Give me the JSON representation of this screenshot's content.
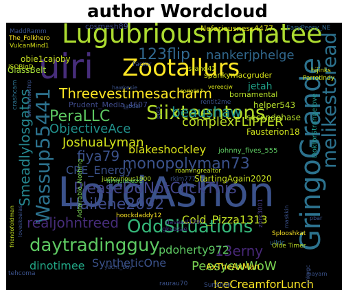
{
  "title": "author Wordcloud",
  "chart_data": {
    "type": "wordcloud",
    "title": "author Wordcloud",
    "colormap": "viridis",
    "background": "#000000",
    "words": [
      {
        "text": "LordAshon",
        "weight": 100,
        "color": "#3b528b"
      },
      {
        "text": "Lugubriousmanatee",
        "weight": 86,
        "color": "#addc30"
      },
      {
        "text": "uiri",
        "weight": 82,
        "color": "#472d7b"
      },
      {
        "text": "GringoGrande",
        "weight": 80,
        "color": "#2c728e"
      },
      {
        "text": "Wassup55441",
        "weight": 64,
        "color": "#2c728e"
      },
      {
        "text": "melikestoread",
        "weight": 62,
        "color": "#2c728e"
      },
      {
        "text": "Zootallurs",
        "weight": 60,
        "color": "#fde725"
      },
      {
        "text": "Siixteentons",
        "weight": 52,
        "color": "#b5de2b"
      },
      {
        "text": "daytradingguy",
        "weight": 48,
        "color": "#5ec962"
      },
      {
        "text": "OddSituations",
        "weight": 46,
        "color": "#35b779"
      },
      {
        "text": "Threevestimesacharm",
        "weight": 44,
        "color": "#fde725"
      },
      {
        "text": "monopolyman73",
        "weight": 42,
        "color": "#3b528b"
      },
      {
        "text": "PleaseDoNotClickThis",
        "weight": 42,
        "color": "#414487"
      },
      {
        "text": "Hailene2092",
        "weight": 40,
        "color": "#3e4a89"
      },
      {
        "text": "realjohntreed",
        "weight": 38,
        "color": "#472d7b"
      },
      {
        "text": "Smeadlylosgatos",
        "weight": 38,
        "color": "#25858e"
      },
      {
        "text": "123flip",
        "weight": 36,
        "color": "#31688e"
      },
      {
        "text": "nankerjphelge",
        "weight": 34,
        "color": "#31688e"
      },
      {
        "text": "PeraLLC",
        "weight": 32,
        "color": "#5ec962"
      },
      {
        "text": "ObjectiveAce",
        "weight": 32,
        "color": "#21918c"
      },
      {
        "text": "beaushaw",
        "weight": 32,
        "color": "#21918c"
      },
      {
        "text": "complexFLIPPER",
        "weight": 30,
        "color": "#bddf26"
      },
      {
        "text": "JoshuaLyman",
        "weight": 30,
        "color": "#d0e11c"
      },
      {
        "text": "fiya79",
        "weight": 30,
        "color": "#3b528b"
      },
      {
        "text": "blakeshockley",
        "weight": 28,
        "color": "#d8e219"
      },
      {
        "text": "PeesyewWoW",
        "weight": 30,
        "color": "#7ad151"
      },
      {
        "text": "13erny",
        "weight": 30,
        "color": "#482878"
      },
      {
        "text": "Cold_Pizza1313",
        "weight": 28,
        "color": "#c2df23"
      },
      {
        "text": "pdoherty972",
        "weight": 28,
        "color": "#5ec962"
      },
      {
        "text": "CRE_Energy",
        "weight": 26,
        "color": "#3b528b"
      },
      {
        "text": "dinotimee",
        "weight": 26,
        "color": "#21a685"
      },
      {
        "text": "SyntheticOne",
        "weight": 26,
        "color": "#3b528b"
      },
      {
        "text": "IceCreamforLunch",
        "weight": 26,
        "color": "#fde725"
      },
      {
        "text": "AxTheAxMan",
        "weight": 24,
        "color": "#fde725"
      },
      {
        "text": "StartingAgain2020",
        "weight": 22,
        "color": "#c8e020"
      },
      {
        "text": "Fausterion18",
        "weight": 22,
        "color": "#cde11d"
      },
      {
        "text": "helper543",
        "weight": 20,
        "color": "#b5de2b"
      },
      {
        "text": "secondphase",
        "weight": 20,
        "color": "#b5de2b"
      },
      {
        "text": "jetah",
        "weight": 22,
        "color": "#1fa187"
      },
      {
        "text": "obie1cajoby",
        "weight": 20,
        "color": "#c8e020"
      },
      {
        "text": "GlassBelt",
        "weight": 20,
        "color": "#a2da37"
      },
      {
        "text": "spankymacgruder",
        "weight": 20,
        "color": "#d8e219"
      },
      {
        "text": "bornamental",
        "weight": 18,
        "color": "#b5de2b"
      },
      {
        "text": "srand42",
        "weight": 18,
        "color": "#cde11d"
      },
      {
        "text": "Nefariousness4477",
        "weight": 20,
        "color": "#e5e419"
      },
      {
        "text": "cosmesh89",
        "weight": 20,
        "color": "#3e4a89"
      },
      {
        "text": "DoktorStrangelove",
        "weight": 18,
        "color": "#1f988b"
      },
      {
        "text": "johnny_fives_555",
        "weight": 18,
        "color": "#5ec962"
      },
      {
        "text": "Prudent_Media_4607",
        "weight": 18,
        "color": "#3e4a89"
      },
      {
        "text": "Factor",
        "weight": 14,
        "color": "#3b528b"
      },
      {
        "text": "rentit2me",
        "weight": 14,
        "color": "#3b528b"
      },
      {
        "text": "roamingrealtor",
        "weight": 14,
        "color": "#c2df23"
      },
      {
        "text": "rkim777",
        "weight": 14,
        "color": "#3b528b"
      },
      {
        "text": "justcurious1900",
        "weight": 14,
        "color": "#b5de2b"
      },
      {
        "text": "Admirable_Nothing",
        "weight": 14,
        "color": "#7ad151"
      },
      {
        "text": "hoockdaddy12",
        "weight": 14,
        "color": "#fde725"
      },
      {
        "text": "daveed1297",
        "weight": 14,
        "color": "#443983"
      },
      {
        "text": "gksozae",
        "weight": 14,
        "color": "#443983"
      },
      {
        "text": "ullric",
        "weight": 14,
        "color": "#31688e"
      },
      {
        "text": "Olde Timer",
        "weight": 14,
        "color": "#bddf26"
      },
      {
        "text": "Splooshkat",
        "weight": 14,
        "color": "#fde725"
      },
      {
        "text": "zork3001",
        "weight": 14,
        "color": "#443983"
      },
      {
        "text": "SunShak",
        "weight": 14,
        "color": "#3b528b"
      },
      {
        "text": "raurau70",
        "weight": 14,
        "color": "#3b528b"
      },
      {
        "text": "tehcoma",
        "weight": 14,
        "color": "#3b528b"
      },
      {
        "text": "MaddRamm",
        "weight": 14,
        "color": "#3b528b"
      },
      {
        "text": "The_Folkhero",
        "weight": 16,
        "color": "#fde725"
      },
      {
        "text": "VulcanMind1",
        "weight": 16,
        "color": "#d8e219"
      },
      {
        "text": "iSOBigD",
        "weight": 16,
        "color": "#c8e020"
      },
      {
        "text": "crashcam",
        "weight": 14,
        "color": "#2c728e"
      },
      {
        "text": "friendofoldman",
        "weight": 14,
        "color": "#c2df23"
      },
      {
        "text": "loveskoalas",
        "weight": 14,
        "color": "#3b528b"
      },
      {
        "text": "EasyPeesy_NE",
        "weight": 14,
        "color": "#31688e"
      },
      {
        "text": "hijinks",
        "weight": 14,
        "color": "#d8e219"
      },
      {
        "text": "ParrotIndy",
        "weight": 14,
        "color": "#d8e219"
      },
      {
        "text": "coriolis7",
        "weight": 14,
        "color": "#d8e219"
      },
      {
        "text": "vereecjw",
        "weight": 14,
        "color": "#d8e219"
      },
      {
        "text": "Smartnership",
        "weight": 14,
        "color": "#3b528b"
      },
      {
        "text": "NPRjunkieDC",
        "weight": 14,
        "color": "#5ec962"
      },
      {
        "text": "hawkesie",
        "weight": 14,
        "color": "#3b528b"
      },
      {
        "text": "jabdal",
        "weight": 14,
        "color": "#3b528b"
      },
      {
        "text": "bpt3",
        "weight": 14,
        "color": "#3b528b"
      },
      {
        "text": "maskkin",
        "weight": 14,
        "color": "#3b528b"
      },
      {
        "text": "yacht_boy",
        "weight": 14,
        "color": "#3b528b"
      },
      {
        "text": "ynkvgc",
        "weight": 14,
        "color": "#3b528b"
      },
      {
        "text": "pbar",
        "weight": 14,
        "color": "#3b528b"
      },
      {
        "text": "mayarn",
        "weight": 14,
        "color": "#3b528b"
      }
    ]
  }
}
